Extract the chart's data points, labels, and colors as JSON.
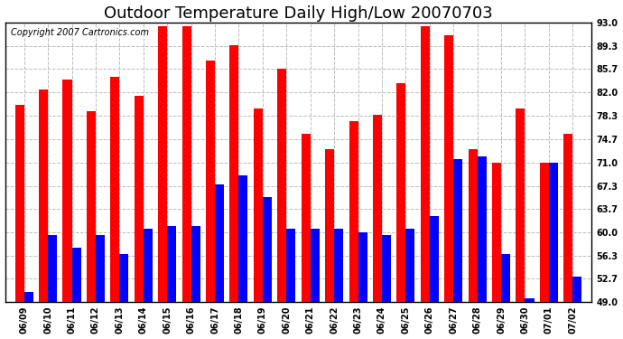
{
  "title": "Outdoor Temperature Daily High/Low 20070703",
  "copyright": "Copyright 2007 Cartronics.com",
  "categories": [
    "06/09",
    "06/10",
    "06/11",
    "06/12",
    "06/13",
    "06/14",
    "06/15",
    "06/16",
    "06/17",
    "06/18",
    "06/19",
    "06/20",
    "06/21",
    "06/22",
    "06/23",
    "06/24",
    "06/25",
    "06/26",
    "06/27",
    "06/28",
    "06/29",
    "06/30",
    "07/01",
    "07/02"
  ],
  "highs": [
    80.0,
    82.5,
    84.0,
    79.0,
    84.5,
    81.5,
    92.5,
    92.5,
    87.0,
    89.5,
    79.5,
    85.7,
    75.5,
    73.0,
    77.5,
    78.5,
    83.5,
    92.5,
    91.0,
    73.0,
    71.0,
    79.5,
    71.0,
    75.5
  ],
  "lows": [
    50.5,
    59.5,
    57.5,
    59.5,
    56.5,
    60.5,
    61.0,
    61.0,
    67.5,
    69.0,
    65.5,
    60.5,
    60.5,
    60.5,
    60.0,
    59.5,
    60.5,
    62.5,
    71.5,
    72.0,
    56.5,
    49.5,
    71.0,
    53.0
  ],
  "high_color": "#FF0000",
  "low_color": "#0000FF",
  "bg_color": "#FFFFFF",
  "plot_bg_color": "#FFFFFF",
  "grid_color": "#BBBBBB",
  "ymin": 49.0,
  "ymax": 93.0,
  "yticks": [
    49.0,
    52.7,
    56.3,
    60.0,
    63.7,
    67.3,
    71.0,
    74.7,
    78.3,
    82.0,
    85.7,
    89.3,
    93.0
  ],
  "bar_width": 0.38,
  "title_fontsize": 13,
  "tick_fontsize": 7,
  "copyright_fontsize": 7
}
